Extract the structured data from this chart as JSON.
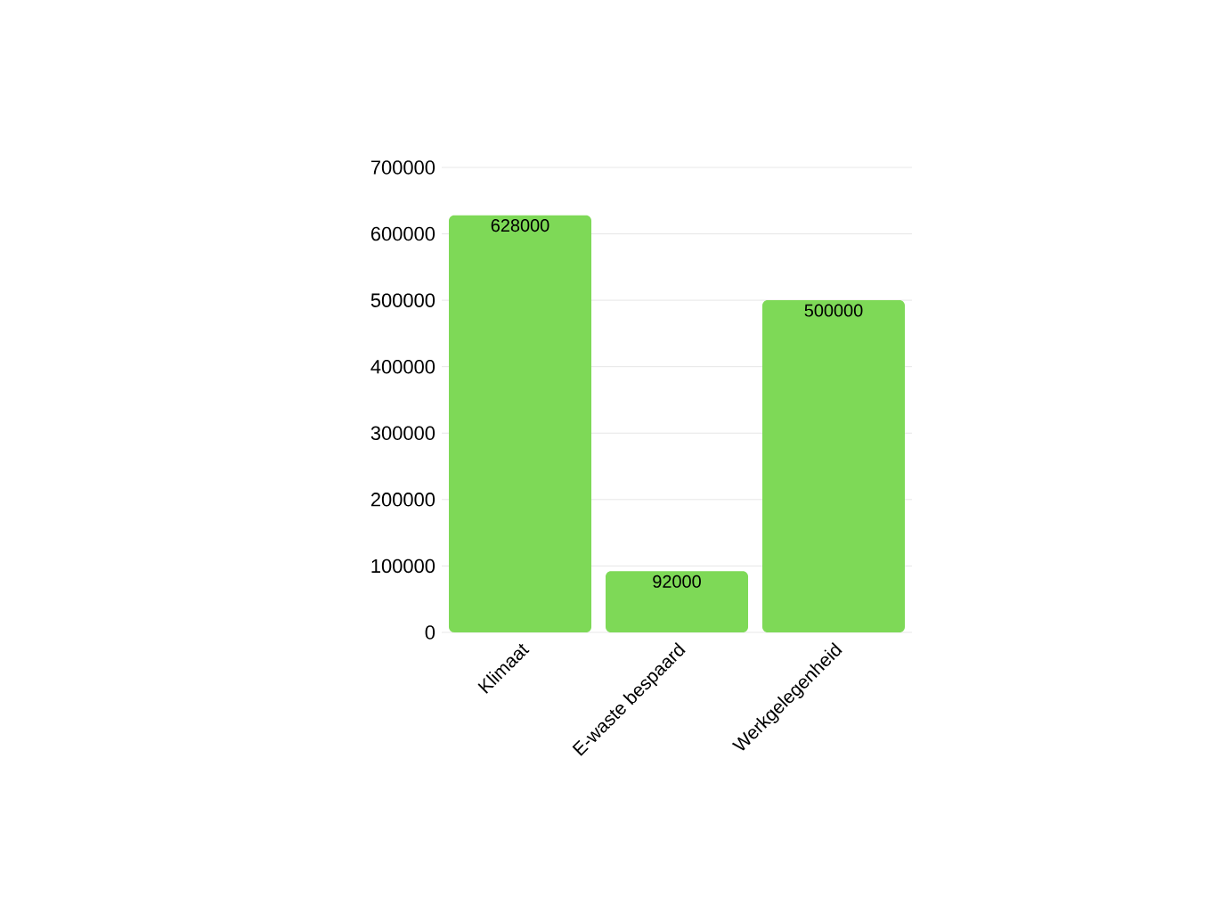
{
  "chart_data": {
    "type": "bar",
    "categories": [
      "Klimaat",
      "E-waste bespaard",
      "Werkgelegenheid"
    ],
    "values": [
      628000,
      92000,
      500000
    ],
    "color": "#7ed957",
    "ylim": [
      0,
      700000
    ],
    "yticks": [
      0,
      100000,
      200000,
      300000,
      400000,
      500000,
      600000,
      700000
    ],
    "grid": "y",
    "data_labels": true
  }
}
